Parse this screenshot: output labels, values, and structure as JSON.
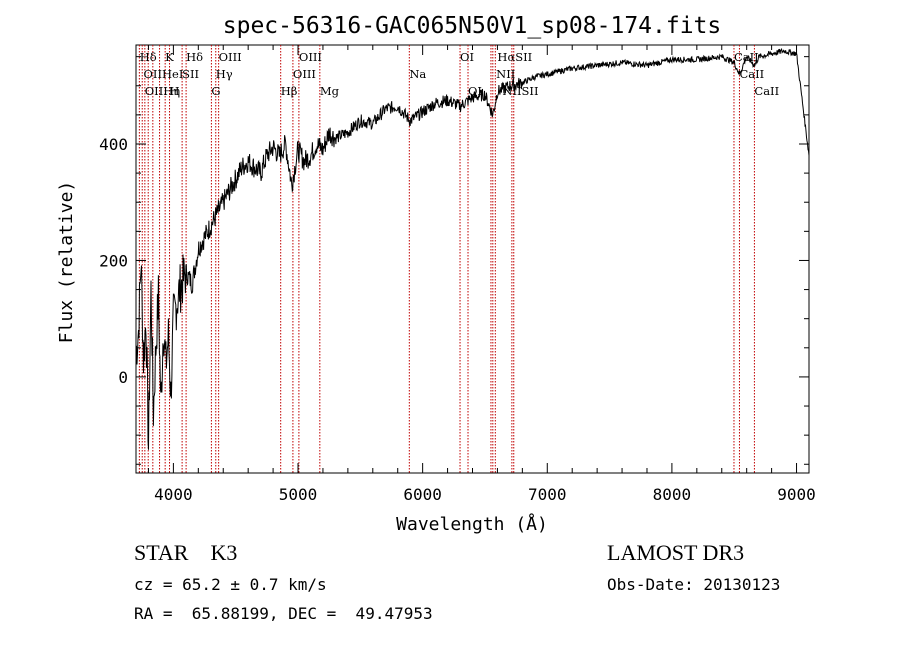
{
  "chart_data": {
    "type": "line",
    "title": "spec-56316-GAC065N50V1_sp08-174.fits",
    "xlabel": "Wavelength (Å)",
    "ylabel": "Flux (relative)",
    "xlim": [
      3700,
      9100
    ],
    "ylim": [
      -165,
      570
    ],
    "x_ticks": [
      4000,
      5000,
      6000,
      7000,
      8000,
      9000
    ],
    "y_ticks": [
      0,
      200,
      400
    ],
    "series": [
      {
        "name": "spectrum",
        "x": [
          3700,
          3720,
          3740,
          3760,
          3780,
          3800,
          3820,
          3840,
          3860,
          3880,
          3900,
          3920,
          3940,
          3960,
          3980,
          4000,
          4050,
          4100,
          4150,
          4200,
          4250,
          4300,
          4350,
          4400,
          4450,
          4500,
          4550,
          4600,
          4650,
          4700,
          4750,
          4800,
          4850,
          4900,
          4950,
          5000,
          5050,
          5100,
          5150,
          5200,
          5250,
          5300,
          5400,
          5500,
          5600,
          5700,
          5800,
          5900,
          6000,
          6100,
          6200,
          6300,
          6400,
          6500,
          6563,
          6600,
          6700,
          6800,
          6900,
          7000,
          7200,
          7400,
          7600,
          7800,
          8000,
          8200,
          8400,
          8498,
          8542,
          8600,
          8662,
          8700,
          8800,
          8900,
          9000,
          9100
        ],
        "y": [
          40,
          80,
          200,
          30,
          100,
          -120,
          150,
          -60,
          50,
          140,
          -50,
          90,
          20,
          70,
          -30,
          100,
          150,
          180,
          160,
          220,
          240,
          260,
          280,
          300,
          320,
          340,
          360,
          370,
          360,
          350,
          380,
          395,
          380,
          400,
          330,
          390,
          370,
          380,
          400,
          390,
          420,
          410,
          420,
          440,
          435,
          460,
          465,
          440,
          455,
          470,
          475,
          465,
          480,
          485,
          450,
          490,
          500,
          505,
          515,
          520,
          530,
          535,
          540,
          535,
          545,
          545,
          550,
          540,
          520,
          550,
          535,
          550,
          555,
          560,
          555,
          380
        ]
      }
    ],
    "emission_lines": [
      {
        "label": "Hδ",
        "x": 3730,
        "row": 1
      },
      {
        "label": "K",
        "x": 3934,
        "row": 1
      },
      {
        "label": "Hδ",
        "x": 4102,
        "row": 1
      },
      {
        "label": "OIII",
        "x": 4363,
        "row": 1
      },
      {
        "label": "OIII",
        "x": 5007,
        "row": 1
      },
      {
        "label": "OI",
        "x": 6300,
        "row": 1
      },
      {
        "label": "HαSII",
        "x": 6600,
        "row": 1
      },
      {
        "label": "CaII",
        "x": 8498,
        "row": 1
      },
      {
        "label": "OIIHeI",
        "x": 3760,
        "row": 2
      },
      {
        "label": "SII",
        "x": 4070,
        "row": 2
      },
      {
        "label": "Hγ",
        "x": 4340,
        "row": 2
      },
      {
        "label": "OIII",
        "x": 4959,
        "row": 2
      },
      {
        "label": "Na",
        "x": 5893,
        "row": 2
      },
      {
        "label": "NII",
        "x": 6590,
        "row": 2
      },
      {
        "label": "CaII",
        "x": 8542,
        "row": 2
      },
      {
        "label": "OIIHη",
        "x": 3770,
        "row": 3
      },
      {
        "label": "H",
        "x": 3969,
        "row": 3
      },
      {
        "label": "G",
        "x": 4305,
        "row": 3
      },
      {
        "label": "Hβ",
        "x": 4861,
        "row": 3
      },
      {
        "label": "Mg",
        "x": 5175,
        "row": 3
      },
      {
        "label": "OI",
        "x": 6364,
        "row": 3
      },
      {
        "label": "NIISII",
        "x": 6640,
        "row": 3
      },
      {
        "label": "CaII",
        "x": 8662,
        "row": 3
      }
    ],
    "vlines": [
      3727,
      3750,
      3771,
      3798,
      3835,
      3889,
      3934,
      3969,
      4070,
      4102,
      4305,
      4340,
      4363,
      4861,
      4959,
      5007,
      5175,
      5893,
      6300,
      6364,
      6548,
      6563,
      6583,
      6716,
      6731,
      8498,
      8542,
      8662
    ]
  },
  "info": {
    "object": "STAR    K3",
    "survey": "LAMOST DR3",
    "cz": "cz = 65.2 ± 0.7 km/s",
    "obs_date": "Obs-Date: 20130123",
    "coords": "RA =  65.88199, DEC =  49.47953"
  }
}
